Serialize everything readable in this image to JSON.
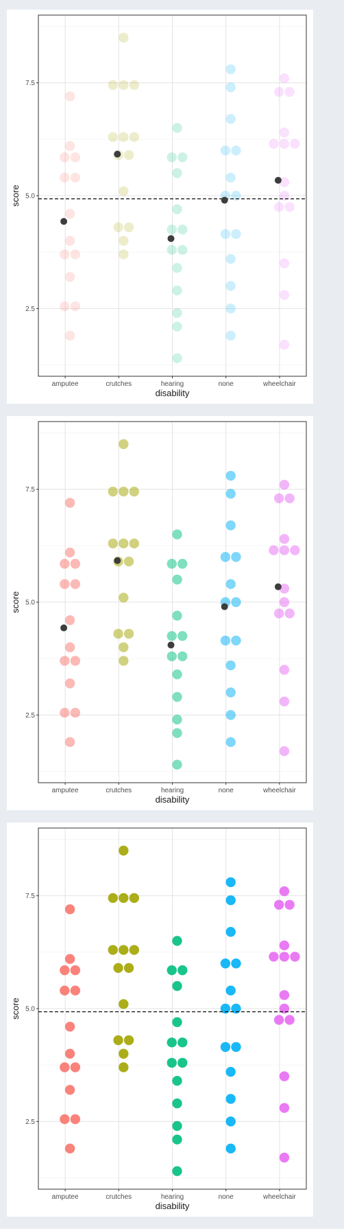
{
  "colors": {
    "amputee": "#F8766D",
    "crutches": "#A3A500",
    "hearing": "#00BF7D",
    "none": "#00B0F6",
    "wheelchair": "#E76BF3",
    "mean_point": "#3d3d3d",
    "reference_line": "#1a1a1a"
  },
  "chart_data": [
    {
      "type": "scatter",
      "xlabel": "disability",
      "ylabel": "score",
      "categories": [
        "amputee",
        "crutches",
        "hearing",
        "none",
        "wheelchair"
      ],
      "ylim": [
        1.0,
        9.0
      ],
      "yticks": [
        "2.5",
        "5.0",
        "7.5"
      ],
      "grid": true,
      "point_opacity": 0.2,
      "reference_line": 4.93,
      "series": [
        {
          "category": "amputee",
          "values": [
            7.2,
            6.1,
            5.85,
            5.85,
            5.4,
            5.4,
            4.6,
            4.0,
            3.7,
            3.7,
            3.2,
            2.55,
            2.55,
            1.9
          ]
        },
        {
          "category": "crutches",
          "values": [
            8.5,
            7.45,
            7.45,
            7.45,
            6.3,
            6.3,
            6.3,
            5.9,
            5.9,
            5.1,
            4.3,
            4.3,
            4.0,
            3.7
          ]
        },
        {
          "category": "hearing",
          "values": [
            6.5,
            5.85,
            5.85,
            5.5,
            4.7,
            4.25,
            4.25,
            3.8,
            3.8,
            3.4,
            2.9,
            2.4,
            2.1,
            1.4
          ]
        },
        {
          "category": "none",
          "values": [
            7.8,
            7.4,
            6.7,
            6.0,
            6.0,
            5.4,
            5.0,
            5.0,
            4.15,
            4.15,
            3.6,
            3.0,
            2.5,
            1.9
          ]
        },
        {
          "category": "wheelchair",
          "values": [
            7.6,
            7.3,
            7.3,
            6.4,
            6.15,
            6.15,
            6.15,
            5.3,
            5.0,
            4.75,
            4.75,
            3.5,
            2.8,
            1.7
          ]
        }
      ],
      "means": [
        4.43,
        5.92,
        4.05,
        4.9,
        5.34
      ]
    },
    {
      "type": "scatter",
      "xlabel": "disability",
      "ylabel": "score",
      "categories": [
        "amputee",
        "crutches",
        "hearing",
        "none",
        "wheelchair"
      ],
      "ylim": [
        1.0,
        9.0
      ],
      "yticks": [
        "2.5",
        "5.0",
        "7.5"
      ],
      "grid": true,
      "point_opacity": 0.5,
      "reference_line": null,
      "series": [
        {
          "category": "amputee",
          "values": [
            7.2,
            6.1,
            5.85,
            5.85,
            5.4,
            5.4,
            4.6,
            4.0,
            3.7,
            3.7,
            3.2,
            2.55,
            2.55,
            1.9
          ]
        },
        {
          "category": "crutches",
          "values": [
            8.5,
            7.45,
            7.45,
            7.45,
            6.3,
            6.3,
            6.3,
            5.9,
            5.9,
            5.1,
            4.3,
            4.3,
            4.0,
            3.7
          ]
        },
        {
          "category": "hearing",
          "values": [
            6.5,
            5.85,
            5.85,
            5.5,
            4.7,
            4.25,
            4.25,
            3.8,
            3.8,
            3.4,
            2.9,
            2.4,
            2.1,
            1.4
          ]
        },
        {
          "category": "none",
          "values": [
            7.8,
            7.4,
            6.7,
            6.0,
            6.0,
            5.4,
            5.0,
            5.0,
            4.15,
            4.15,
            3.6,
            3.0,
            2.5,
            1.9
          ]
        },
        {
          "category": "wheelchair",
          "values": [
            7.6,
            7.3,
            7.3,
            6.4,
            6.15,
            6.15,
            6.15,
            5.3,
            5.0,
            4.75,
            4.75,
            3.5,
            2.8,
            1.7
          ]
        }
      ],
      "means": [
        4.43,
        5.92,
        4.05,
        4.9,
        5.34
      ]
    },
    {
      "type": "scatter",
      "xlabel": "disability",
      "ylabel": "score",
      "categories": [
        "amputee",
        "crutches",
        "hearing",
        "none",
        "wheelchair"
      ],
      "ylim": [
        1.0,
        9.0
      ],
      "yticks": [
        "2.5",
        "5.0",
        "7.5"
      ],
      "grid": true,
      "point_opacity": 0.9,
      "reference_line": 4.93,
      "series": [
        {
          "category": "amputee",
          "values": [
            7.2,
            6.1,
            5.85,
            5.85,
            5.4,
            5.4,
            4.6,
            4.0,
            3.7,
            3.7,
            3.2,
            2.55,
            2.55,
            1.9
          ]
        },
        {
          "category": "crutches",
          "values": [
            8.5,
            7.45,
            7.45,
            7.45,
            6.3,
            6.3,
            6.3,
            5.9,
            5.9,
            5.1,
            4.3,
            4.3,
            4.0,
            3.7
          ]
        },
        {
          "category": "hearing",
          "values": [
            6.5,
            5.85,
            5.85,
            5.5,
            4.7,
            4.25,
            4.25,
            3.8,
            3.8,
            3.4,
            2.9,
            2.4,
            2.1,
            1.4
          ]
        },
        {
          "category": "none",
          "values": [
            7.8,
            7.4,
            6.7,
            6.0,
            6.0,
            5.4,
            5.0,
            5.0,
            4.15,
            4.15,
            3.6,
            3.0,
            2.5,
            1.9
          ]
        },
        {
          "category": "wheelchair",
          "values": [
            7.6,
            7.3,
            7.3,
            6.4,
            6.15,
            6.15,
            6.15,
            5.3,
            5.0,
            4.75,
            4.75,
            3.5,
            2.8,
            1.7
          ]
        }
      ],
      "means": []
    }
  ]
}
